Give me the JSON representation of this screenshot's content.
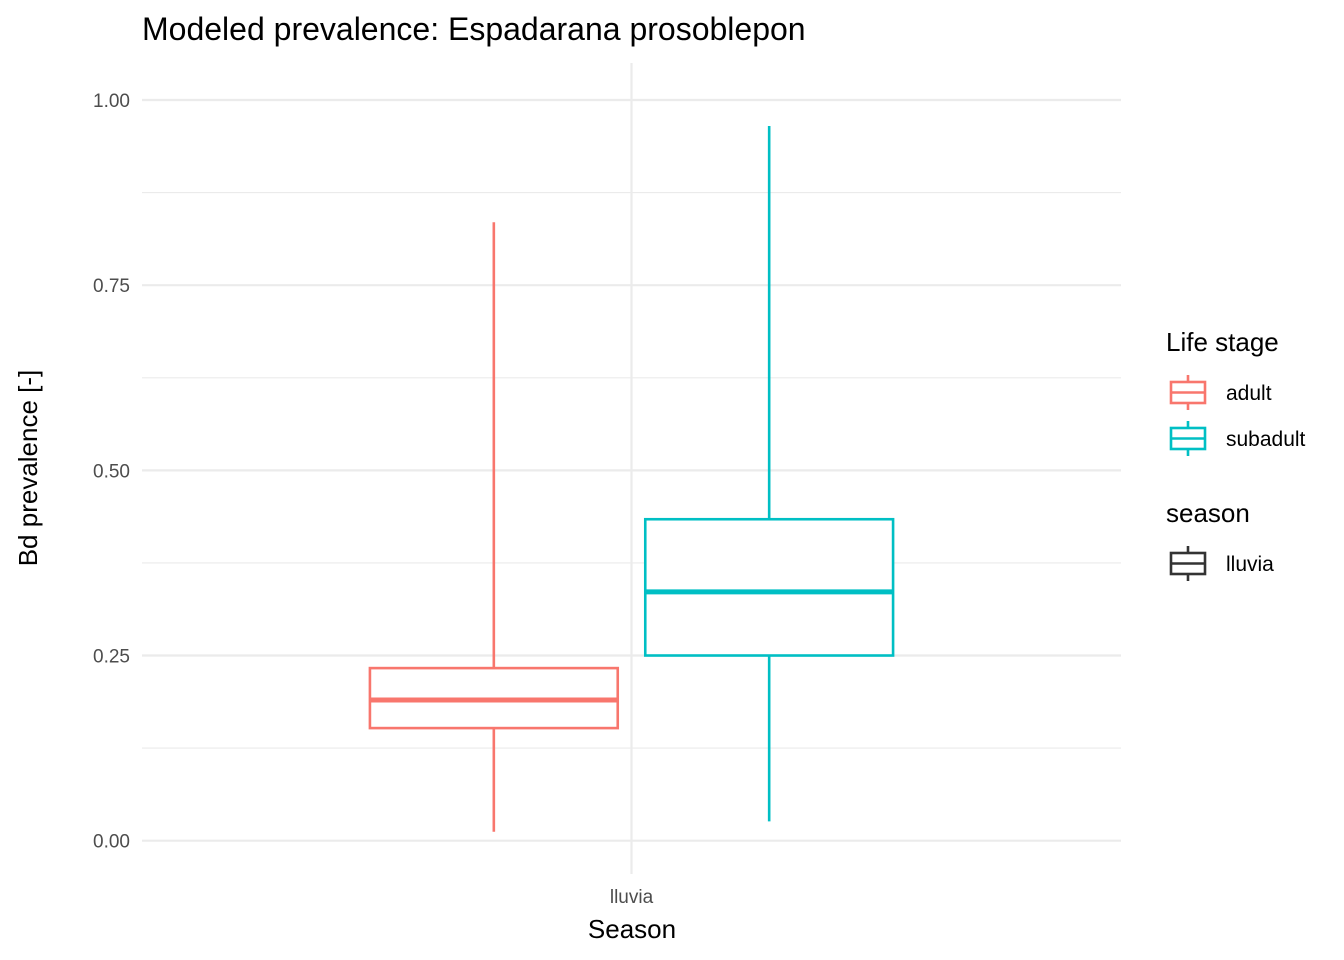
{
  "chart_data": {
    "type": "boxplot",
    "title": "Modeled prevalence: Espadarana prosoblepon",
    "xlabel": "Season",
    "ylabel": "Bd prevalence [-]",
    "categories": [
      "lluvia"
    ],
    "ylim": [
      -0.045,
      1.05
    ],
    "yticks": [
      0.0,
      0.25,
      0.5,
      0.75,
      1.0
    ],
    "ytick_labels": [
      "0.00",
      "0.25",
      "0.50",
      "0.75",
      "1.00"
    ],
    "grid": true,
    "legend_position": "right",
    "series": [
      {
        "name": "adult",
        "color": "#F8766D",
        "boxes": [
          {
            "category": "lluvia",
            "min": 0.012,
            "q1": 0.152,
            "median": 0.19,
            "q3": 0.233,
            "max": 0.835
          }
        ]
      },
      {
        "name": "subadult",
        "color": "#00BFC4",
        "boxes": [
          {
            "category": "lluvia",
            "min": 0.026,
            "q1": 0.25,
            "median": 0.336,
            "q3": 0.434,
            "max": 0.965
          }
        ]
      }
    ],
    "legends": [
      {
        "title": "Life stage",
        "entries": [
          {
            "label": "adult",
            "color": "#F8766D"
          },
          {
            "label": "subadult",
            "color": "#00BFC4"
          }
        ]
      },
      {
        "title": "season",
        "entries": [
          {
            "label": "lluvia",
            "color": "#333333"
          }
        ]
      }
    ]
  }
}
